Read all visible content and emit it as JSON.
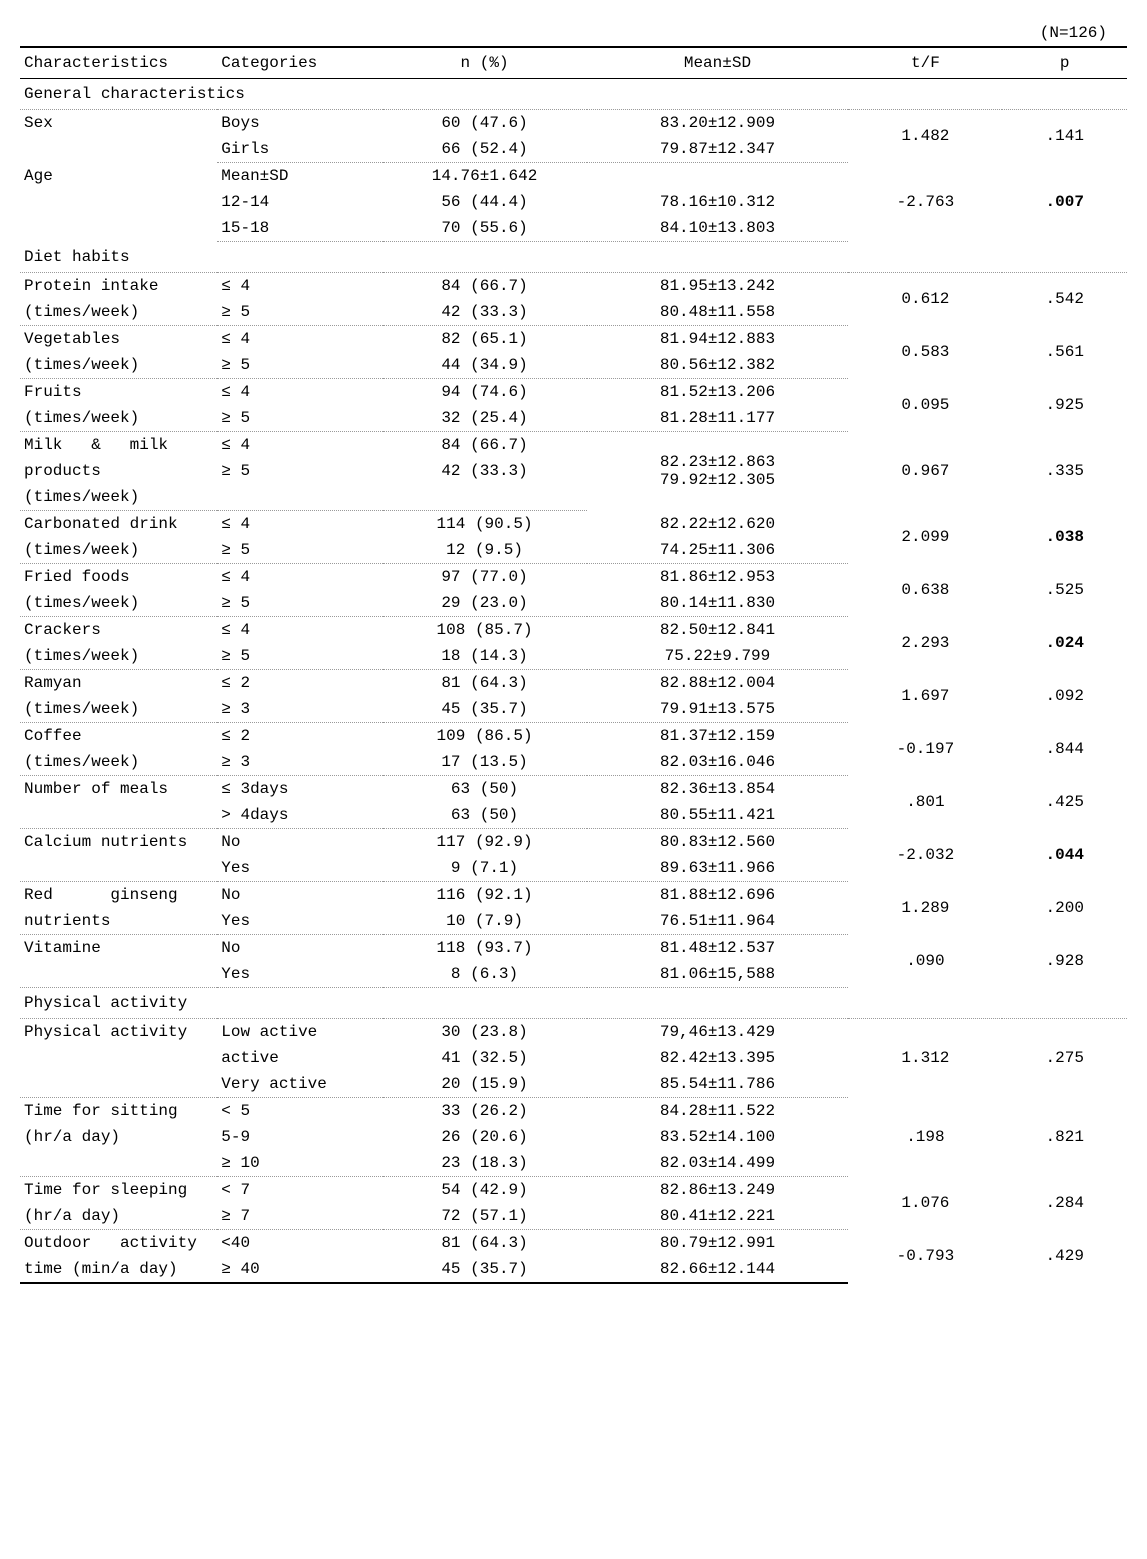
{
  "meta": {
    "n_label": "(N=126)"
  },
  "headers": {
    "char": "Characteristics",
    "cat": "Categories",
    "npct": "n (%)",
    "msd": "Mean±SD",
    "tf": "t/F",
    "p": "p"
  },
  "sections": {
    "general": "General characteristics",
    "diet": "Diet habits",
    "physical": "Physical activity"
  },
  "rows": {
    "sex": {
      "char": "Sex",
      "r": [
        {
          "cat": "Boys",
          "n": "60 (47.6)",
          "msd": "83.20±12.909"
        },
        {
          "cat": "Girls",
          "n": "66 (52.4)",
          "msd": "79.87±12.347"
        }
      ],
      "tf": "1.482",
      "p": ".141"
    },
    "age": {
      "char": "Age",
      "r": [
        {
          "cat": "Mean±SD",
          "n": "14.76±1.642",
          "msd": ""
        },
        {
          "cat": "12-14",
          "n": "56 (44.4)",
          "msd": "78.16±10.312"
        },
        {
          "cat": "15-18",
          "n": "70 (55.6)",
          "msd": "84.10±13.803"
        }
      ],
      "tf": "-2.763",
      "p": ".007",
      "p_bold": true
    },
    "protein": {
      "char1": "Protein intake",
      "char2": "(times/week)",
      "r": [
        {
          "cat": "≤ 4",
          "n": "84 (66.7)",
          "msd": "81.95±13.242"
        },
        {
          "cat": "≥ 5",
          "n": "42 (33.3)",
          "msd": "80.48±11.558"
        }
      ],
      "tf": "0.612",
      "p": ".542"
    },
    "veg": {
      "char1": "Vegetables",
      "char2": "(times/week)",
      "r": [
        {
          "cat": "≤ 4",
          "n": "82 (65.1)",
          "msd": "81.94±12.883"
        },
        {
          "cat": "≥ 5",
          "n": "44 (34.9)",
          "msd": "80.56±12.382"
        }
      ],
      "tf": "0.583",
      "p": ".561"
    },
    "fruit": {
      "char1": "Fruits",
      "char2": "(times/week)",
      "r": [
        {
          "cat": "≤ 4",
          "n": "94 (74.6)",
          "msd": "81.52±13.206"
        },
        {
          "cat": "≥ 5",
          "n": "32 (25.4)",
          "msd": "81.28±11.177"
        }
      ],
      "tf": "0.095",
      "p": ".925"
    },
    "milk": {
      "char1": "Milk   &   milk",
      "char2": "products",
      "char3": "(times/week)",
      "r": [
        {
          "cat": "≤ 4",
          "n": "84 (66.7)",
          "msd": "82.23±12.863"
        },
        {
          "cat": "≥ 5",
          "n": "42 (33.3)",
          "msd": "79.92±12.305"
        }
      ],
      "tf": "0.967",
      "p": ".335"
    },
    "carb": {
      "char1": "Carbonated drink",
      "char2": "(times/week)",
      "r": [
        {
          "cat": "≤ 4",
          "n": "114 (90.5)",
          "msd": "82.22±12.620"
        },
        {
          "cat": "≥ 5",
          "n": "12 (9.5)",
          "msd": "74.25±11.306"
        }
      ],
      "tf": "2.099",
      "p": ".038",
      "p_bold": true
    },
    "fried": {
      "char1": "Fried foods",
      "char2": "(times/week)",
      "r": [
        {
          "cat": "≤ 4",
          "n": "97 (77.0)",
          "msd": "81.86±12.953"
        },
        {
          "cat": "≥ 5",
          "n": "29 (23.0)",
          "msd": "80.14±11.830"
        }
      ],
      "tf": "0.638",
      "p": ".525"
    },
    "crack": {
      "char1": "Crackers",
      "char2": "(times/week)",
      "r": [
        {
          "cat": "≤ 4",
          "n": "108 (85.7)",
          "msd": "82.50±12.841"
        },
        {
          "cat": "≥ 5",
          "n": "18 (14.3)",
          "msd": "75.22±9.799"
        }
      ],
      "tf": "2.293",
      "p": ".024",
      "p_bold": true
    },
    "ramyan": {
      "char1": "Ramyan",
      "char2": "(times/week)",
      "r": [
        {
          "cat": "≤ 2",
          "n": "81 (64.3)",
          "msd": "82.88±12.004"
        },
        {
          "cat": "≥ 3",
          "n": "45 (35.7)",
          "msd": "79.91±13.575"
        }
      ],
      "tf": "1.697",
      "p": ".092"
    },
    "coffee": {
      "char1": "Coffee",
      "char2": "(times/week)",
      "r": [
        {
          "cat": "≤ 2",
          "n": "109 (86.5)",
          "msd": "81.37±12.159"
        },
        {
          "cat": "≥ 3",
          "n": "17 (13.5)",
          "msd": "82.03±16.046"
        }
      ],
      "tf": "-0.197",
      "p": ".844"
    },
    "meals": {
      "char1": "Number of meals",
      "char2": "",
      "r": [
        {
          "cat": "≤ 3days",
          "n": "63 (50)",
          "msd": "82.36±13.854"
        },
        {
          "cat": "> 4days",
          "n": "63 (50)",
          "msd": "80.55±11.421"
        }
      ],
      "tf": ".801",
      "p": ".425"
    },
    "calcium": {
      "char1": "Calcium nutrients",
      "char2": "",
      "r": [
        {
          "cat": "No",
          "n": "117 (92.9)",
          "msd": "80.83±12.560"
        },
        {
          "cat": "Yes",
          "n": "9 (7.1)",
          "msd": "89.63±11.966"
        }
      ],
      "tf": "-2.032",
      "p": ".044",
      "p_bold": true
    },
    "ginseng": {
      "char1": "Red      ginseng",
      "char2": "nutrients",
      "r": [
        {
          "cat": "No",
          "n": "116 (92.1)",
          "msd": "81.88±12.696"
        },
        {
          "cat": "Yes",
          "n": "10 (7.9)",
          "msd": "76.51±11.964"
        }
      ],
      "tf": "1.289",
      "p": ".200"
    },
    "vit": {
      "char1": "Vitamine",
      "char2": "",
      "r": [
        {
          "cat": "No",
          "n": "118 (93.7)",
          "msd": "81.48±12.537"
        },
        {
          "cat": "Yes",
          "n": "8 (6.3)",
          "msd": "81.06±15,588"
        }
      ],
      "tf": ".090",
      "p": ".928"
    },
    "pact": {
      "char1": "Physical activity",
      "char2": "",
      "r": [
        {
          "cat": "Low active",
          "n": "30 (23.8)",
          "msd": "79,46±13.429"
        },
        {
          "cat": "active",
          "n": "41 (32.5)",
          "msd": "82.42±13.395"
        },
        {
          "cat": "Very active",
          "n": "20 (15.9)",
          "msd": "85.54±11.786"
        }
      ],
      "tf": "1.312",
      "p": ".275"
    },
    "sit": {
      "char1": "Time for sitting",
      "char2": "(hr/a day)",
      "r": [
        {
          "cat": "< 5",
          "n": "33 (26.2)",
          "msd": "84.28±11.522"
        },
        {
          "cat": "5-9",
          "n": "26 (20.6)",
          "msd": "83.52±14.100"
        },
        {
          "cat": "≥ 10",
          "n": "23 (18.3)",
          "msd": "82.03±14.499"
        }
      ],
      "tf": ".198",
      "p": ".821"
    },
    "sleep": {
      "char1": "Time for sleeping",
      "char2": "(hr/a day)",
      "r": [
        {
          "cat": "< 7",
          "n": "54 (42.9)",
          "msd": "82.86±13.249"
        },
        {
          "cat": "≥ 7",
          "n": "72 (57.1)",
          "msd": "80.41±12.221"
        }
      ],
      "tf": "1.076",
      "p": ".284"
    },
    "outdoor": {
      "char1": "Outdoor   activity",
      "char2": "time (min/a day)",
      "r": [
        {
          "cat": "<40",
          "n": "81 (64.3)",
          "msd": "80.79±12.991"
        },
        {
          "cat": "≥ 40",
          "n": "45 (35.7)",
          "msd": "82.66±12.144"
        }
      ],
      "tf": "-0.793",
      "p": ".429"
    }
  }
}
